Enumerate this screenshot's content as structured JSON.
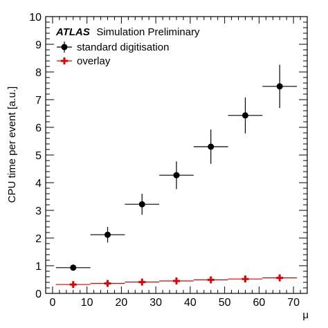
{
  "chart_data": {
    "type": "scatter",
    "experiment": "ATLAS",
    "subtitle": "Simulation Preliminary",
    "xlabel": "μ",
    "ylabel": "CPU time per event [a.u.]",
    "xlim": [
      -2,
      74
    ],
    "ylim": [
      0,
      10
    ],
    "xticks": [
      0,
      10,
      20,
      30,
      40,
      50,
      60,
      70
    ],
    "yticks": [
      0,
      1,
      2,
      3,
      4,
      5,
      6,
      7,
      8,
      9,
      10
    ],
    "legend_position": "top-left",
    "grid": false,
    "series": [
      {
        "name": "standard digitisation",
        "color": "#000000",
        "marker": "circle",
        "points": [
          {
            "x": 6,
            "y": 0.93,
            "xerr": 5,
            "yerr": 0.0
          },
          {
            "x": 16,
            "y": 2.12,
            "xerr": 5,
            "yerr": 0.28
          },
          {
            "x": 26,
            "y": 3.22,
            "xerr": 5,
            "yerr": 0.38
          },
          {
            "x": 36,
            "y": 4.27,
            "xerr": 5,
            "yerr": 0.5
          },
          {
            "x": 46,
            "y": 5.3,
            "xerr": 5,
            "yerr": 0.62
          },
          {
            "x": 56,
            "y": 6.43,
            "xerr": 5,
            "yerr": 0.65
          },
          {
            "x": 66,
            "y": 7.48,
            "xerr": 5,
            "yerr": 0.78
          }
        ]
      },
      {
        "name": "overlay",
        "color": "#e00000",
        "marker": "cross",
        "points": [
          {
            "x": 6,
            "y": 0.32,
            "xerr": 5,
            "yerr": 0.04
          },
          {
            "x": 16,
            "y": 0.36,
            "xerr": 5,
            "yerr": 0.04
          },
          {
            "x": 26,
            "y": 0.41,
            "xerr": 5,
            "yerr": 0.04
          },
          {
            "x": 36,
            "y": 0.45,
            "xerr": 5,
            "yerr": 0.05
          },
          {
            "x": 46,
            "y": 0.49,
            "xerr": 5,
            "yerr": 0.05
          },
          {
            "x": 56,
            "y": 0.52,
            "xerr": 5,
            "yerr": 0.05
          },
          {
            "x": 66,
            "y": 0.56,
            "xerr": 5,
            "yerr": 0.05
          }
        ]
      }
    ]
  }
}
